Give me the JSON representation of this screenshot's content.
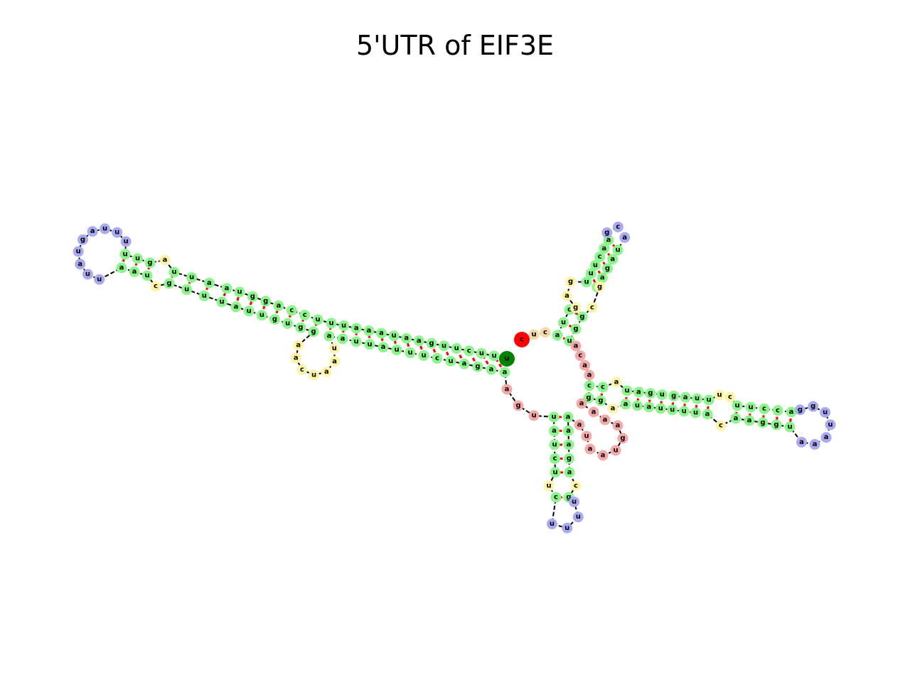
{
  "title": "5'UTR of EIF3E",
  "legend": {
    "loop_type_colors": {
      "stem": "#8cf58c",
      "interior_loop": "#fff5a8",
      "hairpin_loop": "#aaaaf2",
      "multiloop": "#f5aaaa",
      "five_prime_unpaired": "#f7d9a8",
      "pair_line": "#ff0000",
      "backbone": "#000000",
      "five_prime_end": "#ff0000",
      "three_prime_end": "#008000"
    }
  },
  "structure": {
    "type": "rna_secondary_structure",
    "five_prime_end_label": "c",
    "three_prime_end_label": "u",
    "arms": [
      {
        "name": "left-arm",
        "pairs": 25
      },
      {
        "name": "top-arm",
        "pairs": 10
      },
      {
        "name": "right-arm",
        "pairs": 13
      },
      {
        "name": "bottom-arm",
        "pairs": 6
      }
    ]
  }
}
